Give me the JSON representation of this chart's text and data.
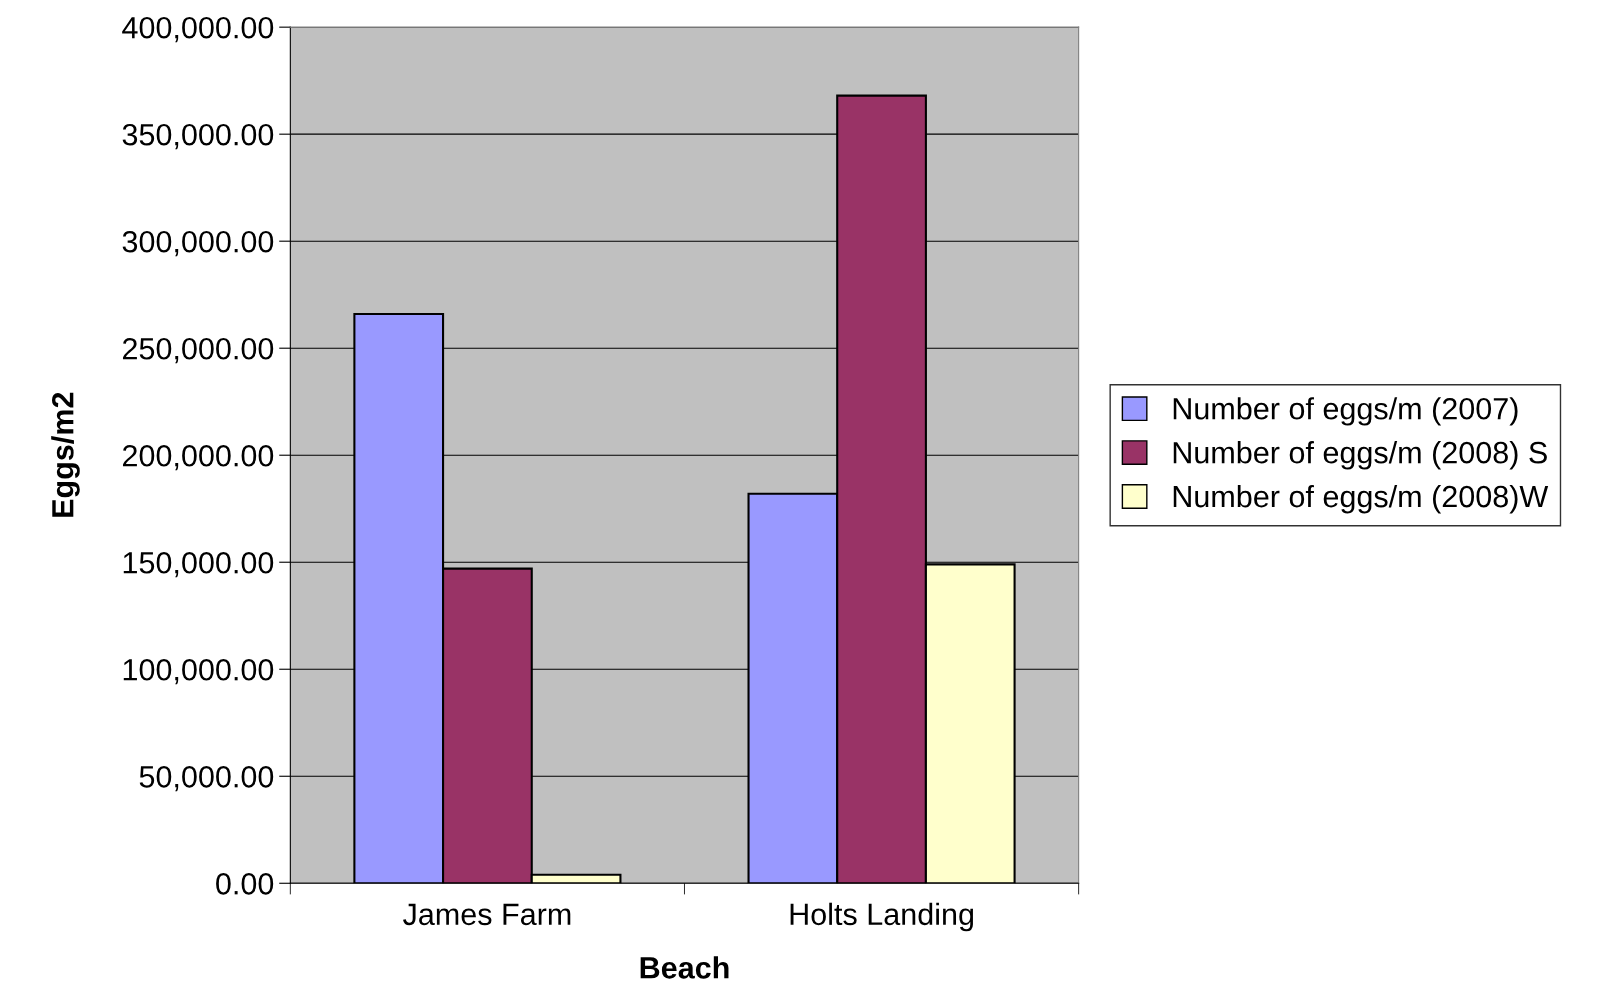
{
  "chart_data": {
    "type": "bar",
    "xlabel": "Beach",
    "ylabel": "Eggs/m2",
    "categories": [
      "James Farm",
      "Holts Landing"
    ],
    "series": [
      {
        "name": "Number of eggs/m (2007)",
        "color": "#9999ff",
        "values": [
          266000,
          182000
        ]
      },
      {
        "name": "Number of eggs/m (2008) S",
        "color": "#993366",
        "values": [
          147000,
          368000
        ]
      },
      {
        "name": "Number of eggs/m (2008)W",
        "color": "#ffffcc",
        "values": [
          4000,
          149000
        ]
      }
    ],
    "ylim": [
      0,
      400000
    ],
    "yticks": [
      {
        "value": 0,
        "label": "0.00"
      },
      {
        "value": 50000,
        "label": "50,000.00"
      },
      {
        "value": 100000,
        "label": "100,000.00"
      },
      {
        "value": 150000,
        "label": "150,000.00"
      },
      {
        "value": 200000,
        "label": "200,000.00"
      },
      {
        "value": 250000,
        "label": "250,000.00"
      },
      {
        "value": 300000,
        "label": "300,000.00"
      },
      {
        "value": 350000,
        "label": "350,000.00"
      },
      {
        "value": 400000,
        "label": "400,000.00"
      }
    ],
    "grid": "y",
    "legend": "right"
  }
}
